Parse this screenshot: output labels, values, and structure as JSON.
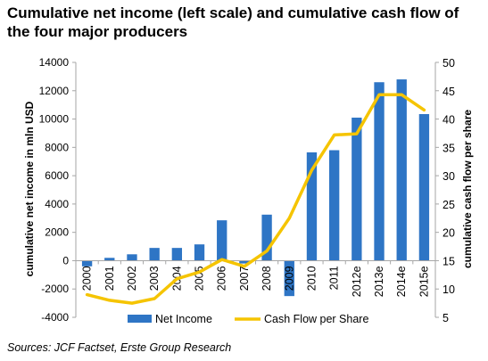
{
  "title": "Cumulative net income (left scale) and cumulative cash flow of the four major producers",
  "source": "Sources: JCF Factset, Erste Group Research",
  "colors": {
    "bar": "#2E75C5",
    "line": "#F5C400",
    "axis": "#A6A6A6"
  },
  "chart_data": {
    "type": "bar+line",
    "title": "Cumulative net income (left scale) and cumulative cash flow of the four major producers",
    "ylabel": "cumulative net income in mln USD",
    "y2label": "cumulative cash flow per share",
    "ylim": [
      -4000,
      14000
    ],
    "y2lim": [
      5,
      50
    ],
    "yticks": [
      "-4000",
      "-2000",
      "0",
      "2000",
      "4000",
      "6000",
      "8000",
      "10000",
      "12000",
      "14000"
    ],
    "y2ticks": [
      "5",
      "10",
      "15",
      "20",
      "25",
      "30",
      "35",
      "40",
      "45",
      "50"
    ],
    "categories": [
      "2000",
      "2001",
      "2002",
      "2003",
      "2004",
      "2005",
      "2006",
      "2007",
      "2008",
      "2009",
      "2010",
      "2011",
      "2012e",
      "2013e",
      "2014e",
      "2015e"
    ],
    "series": [
      {
        "name": "Net Income",
        "type": "bar",
        "axis": "left",
        "values": [
          -400,
          200,
          450,
          900,
          900,
          1150,
          2850,
          -200,
          3250,
          -2500,
          7650,
          7800,
          10100,
          12600,
          12800,
          10350
        ]
      },
      {
        "name": "Cash Flow per Share",
        "type": "line",
        "axis": "right",
        "values": [
          9.0,
          8.0,
          7.5,
          8.3,
          11.8,
          13.0,
          15.2,
          14.0,
          16.7,
          22.5,
          31.0,
          37.2,
          37.4,
          44.3,
          44.3,
          41.6
        ]
      }
    ],
    "legend": "bottom",
    "grid": false
  }
}
